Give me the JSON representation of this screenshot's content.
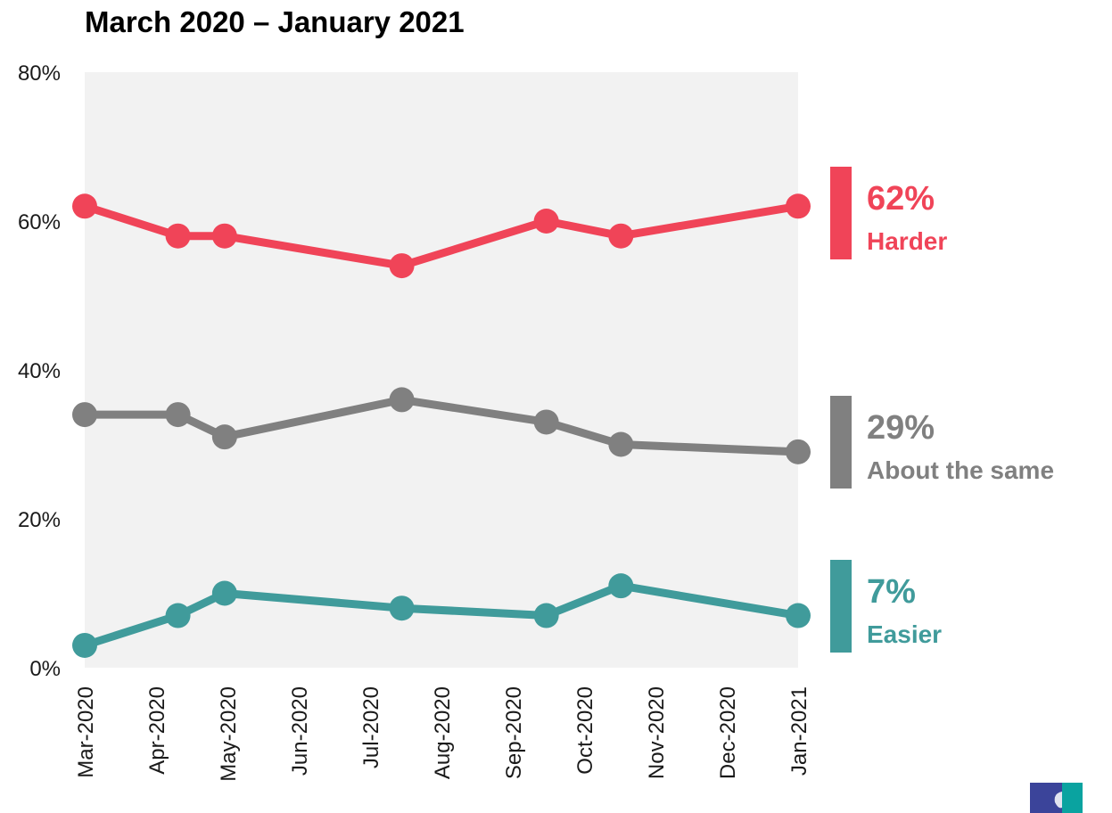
{
  "chart_data": {
    "type": "line",
    "title": "March 2020 – January 2021",
    "xlabel": "",
    "ylabel": "",
    "x_ticks": [
      "Mar-2020",
      "Apr-2020",
      "May-2020",
      "Jun-2020",
      "Jul-2020",
      "Aug-2020",
      "Sep-2020",
      "Oct-2020",
      "Nov-2020",
      "Dec-2020",
      "Jan-2021"
    ],
    "y_ticks": [
      "0%",
      "20%",
      "40%",
      "60%",
      "80%"
    ],
    "ylim": [
      0,
      80
    ],
    "x_range": [
      "2020-03-01",
      "2021-01-01"
    ],
    "grid": false,
    "legend": "right end labels",
    "series": [
      {
        "name": "Harder",
        "end_value_label": "62%",
        "color": "#f04458",
        "points": [
          {
            "x": "2020-03-01",
            "y": 62
          },
          {
            "x": "2020-04-10",
            "y": 58
          },
          {
            "x": "2020-04-30",
            "y": 58
          },
          {
            "x": "2020-07-15",
            "y": 54
          },
          {
            "x": "2020-09-15",
            "y": 60
          },
          {
            "x": "2020-10-17",
            "y": 58
          },
          {
            "x": "2021-01-01",
            "y": 62
          }
        ]
      },
      {
        "name": "About the same",
        "end_value_label": "29%",
        "color": "#808080",
        "points": [
          {
            "x": "2020-03-01",
            "y": 34
          },
          {
            "x": "2020-04-10",
            "y": 34
          },
          {
            "x": "2020-04-30",
            "y": 31
          },
          {
            "x": "2020-07-15",
            "y": 36
          },
          {
            "x": "2020-09-15",
            "y": 33
          },
          {
            "x": "2020-10-17",
            "y": 30
          },
          {
            "x": "2021-01-01",
            "y": 29
          }
        ]
      },
      {
        "name": "Easier",
        "end_value_label": "7%",
        "color": "#409b9b",
        "points": [
          {
            "x": "2020-03-01",
            "y": 3
          },
          {
            "x": "2020-04-10",
            "y": 7
          },
          {
            "x": "2020-04-30",
            "y": 10
          },
          {
            "x": "2020-07-15",
            "y": 8
          },
          {
            "x": "2020-09-15",
            "y": 7
          },
          {
            "x": "2020-10-17",
            "y": 11
          },
          {
            "x": "2021-01-01",
            "y": 7
          }
        ]
      }
    ]
  },
  "logo": {
    "name": "logo-icon",
    "colors": [
      "#3b449a",
      "#0aa3a0"
    ]
  }
}
